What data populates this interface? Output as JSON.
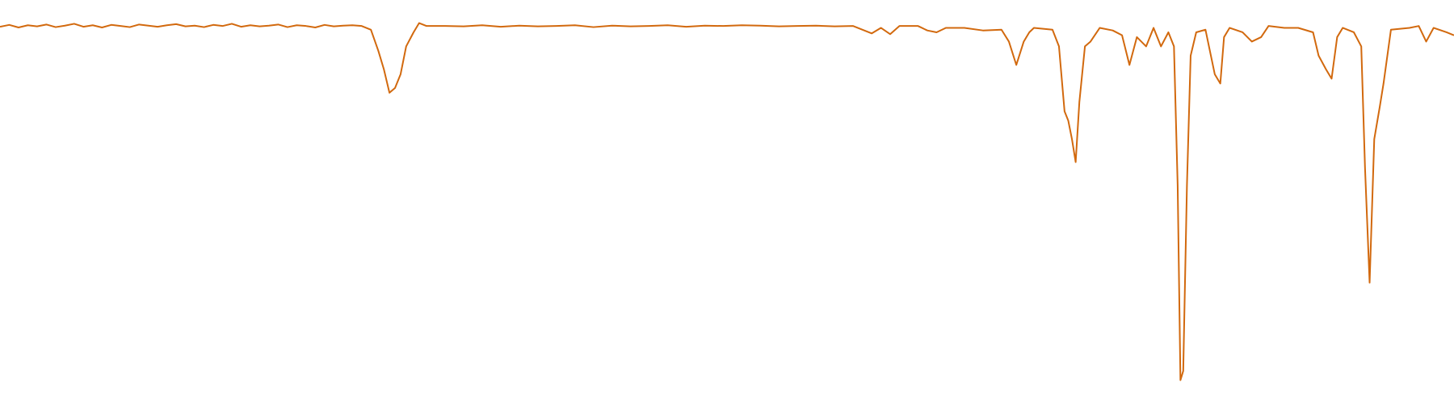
{
  "chart_data": {
    "type": "line",
    "color": "#d2690e",
    "xlim": [
      0,
      1568
    ],
    "ylim": [
      0,
      100
    ],
    "x": [
      0,
      10,
      20,
      30,
      40,
      50,
      60,
      70,
      80,
      90,
      100,
      110,
      120,
      130,
      140,
      150,
      160,
      170,
      180,
      190,
      200,
      210,
      220,
      230,
      240,
      250,
      260,
      270,
      280,
      290,
      300,
      310,
      320,
      330,
      340,
      350,
      360,
      370,
      380,
      390,
      400,
      408,
      414,
      420,
      426,
      432,
      438,
      446,
      452,
      460,
      480,
      500,
      520,
      540,
      560,
      580,
      600,
      620,
      640,
      660,
      680,
      700,
      720,
      740,
      760,
      780,
      800,
      820,
      840,
      860,
      880,
      900,
      920,
      940,
      950,
      960,
      970,
      990,
      1000,
      1010,
      1020,
      1040,
      1060,
      1080,
      1088,
      1096,
      1104,
      1110,
      1115,
      1135,
      1142,
      1148,
      1152,
      1156,
      1160,
      1164,
      1170,
      1176,
      1186,
      1200,
      1210,
      1218,
      1226,
      1236,
      1244,
      1252,
      1260,
      1266,
      1270,
      1273,
      1276,
      1280,
      1284,
      1290,
      1300,
      1310,
      1316,
      1320,
      1326,
      1340,
      1350,
      1360,
      1368,
      1385,
      1400,
      1416,
      1422,
      1430,
      1436,
      1442,
      1448,
      1460,
      1468,
      1472,
      1477,
      1482,
      1488,
      1492,
      1500,
      1520,
      1530,
      1538,
      1546,
      1560,
      1568
    ],
    "values": [
      97.8,
      98.3,
      97.6,
      98.2,
      97.9,
      98.4,
      97.7,
      98.1,
      98.6,
      97.8,
      98.2,
      97.6,
      98.3,
      98.0,
      97.7,
      98.4,
      98.1,
      97.8,
      98.2,
      98.5,
      97.9,
      98.1,
      97.7,
      98.3,
      98.0,
      98.6,
      97.8,
      98.2,
      97.9,
      98.1,
      98.4,
      97.7,
      98.2,
      98.0,
      97.6,
      98.3,
      97.9,
      98.1,
      98.2,
      98,
      97,
      91.3,
      86.3,
      80,
      81.3,
      85,
      92.5,
      96.3,
      98.8,
      98,
      98.0,
      97.9,
      98.2,
      97.8,
      98.1,
      97.9,
      98.0,
      98.2,
      97.7,
      98.1,
      97.9,
      98.0,
      98.2,
      97.8,
      98.1,
      98.0,
      98.2,
      98.1,
      97.9,
      98.0,
      98.1,
      97.9,
      98.0,
      96,
      97.5,
      95.8,
      98,
      98,
      96.8,
      96.3,
      97.5,
      97.5,
      96.8,
      97,
      93.8,
      87.5,
      93.8,
      96.3,
      97.5,
      97,
      92.5,
      75,
      72.5,
      67.5,
      61.3,
      77.5,
      92.5,
      93.8,
      97.5,
      96.8,
      95.5,
      87.5,
      95,
      92.5,
      97.5,
      92.5,
      96.3,
      92.5,
      55,
      2.5,
      5,
      55,
      90,
      96.3,
      97,
      85,
      82.5,
      95,
      97.5,
      96.3,
      93.8,
      95,
      98,
      97.5,
      97.5,
      96.3,
      90,
      86.3,
      83.8,
      95,
      97.5,
      96.3,
      92.5,
      60,
      28.8,
      67.5,
      76.3,
      82.5,
      97,
      97.5,
      98,
      93.8,
      97.5,
      96.3,
      95.5
    ]
  }
}
